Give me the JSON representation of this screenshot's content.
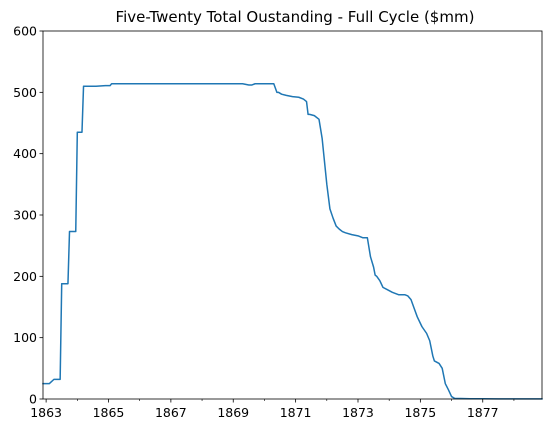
{
  "chart_data": {
    "type": "line",
    "title": "Five-Twenty Total Oustanding - Full Cycle ($mm)",
    "xlabel": "",
    "ylabel": "",
    "xlim": [
      1862.9,
      1878.9
    ],
    "ylim": [
      0,
      600
    ],
    "x_ticks": [
      1863,
      1865,
      1867,
      1869,
      1871,
      1873,
      1875,
      1877
    ],
    "x_tick_labels": [
      "1863",
      "1865",
      "1867",
      "1869",
      "1871",
      "1873",
      "1875",
      "1877"
    ],
    "x_minor_ticks": [
      1864,
      1866,
      1868,
      1870,
      1872,
      1874,
      1876,
      1878
    ],
    "y_ticks": [
      0,
      100,
      200,
      300,
      400,
      500,
      600
    ],
    "y_tick_labels": [
      "0",
      "100",
      "200",
      "300",
      "400",
      "500",
      "600"
    ],
    "grid": false,
    "line_color": "#1f77b4",
    "series": [
      {
        "x": [
          1862.9,
          1863.1,
          1863.25,
          1863.45,
          1863.5,
          1863.7,
          1863.75,
          1863.95,
          1864.0,
          1864.15,
          1864.2,
          1864.6,
          1864.9,
          1865.05,
          1865.1,
          1866.0,
          1867.0,
          1868.0,
          1869.0,
          1869.3,
          1869.5,
          1869.6,
          1869.7,
          1869.8,
          1870.0,
          1870.3,
          1870.4,
          1870.45,
          1870.55,
          1870.7,
          1870.9,
          1871.1,
          1871.25,
          1871.35,
          1871.4,
          1871.45,
          1871.6,
          1871.75,
          1871.85,
          1871.9,
          1872.0,
          1872.05,
          1872.1,
          1872.2,
          1872.3,
          1872.4,
          1872.5,
          1872.6,
          1872.8,
          1873.0,
          1873.15,
          1873.3,
          1873.4,
          1873.5,
          1873.55,
          1873.6,
          1873.7,
          1873.8,
          1873.95,
          1874.1,
          1874.3,
          1874.5,
          1874.6,
          1874.7,
          1874.8,
          1874.9,
          1875.05,
          1875.2,
          1875.3,
          1875.4,
          1875.45,
          1875.6,
          1875.7,
          1875.8,
          1875.9,
          1876.0,
          1876.1,
          1876.3,
          1876.6,
          1877.0,
          1877.5,
          1878.0,
          1878.5,
          1878.9
        ],
        "y": [
          25,
          25,
          32,
          32,
          188,
          188,
          273,
          273,
          435,
          435,
          510,
          510,
          511,
          511,
          514,
          514,
          514,
          514,
          514,
          514,
          512,
          512,
          514,
          514,
          514,
          514,
          500,
          500,
          497,
          495,
          493,
          492,
          489,
          485,
          464,
          464,
          462,
          456,
          425,
          400,
          350,
          330,
          310,
          295,
          282,
          277,
          273,
          271,
          268,
          266,
          263,
          263,
          232,
          215,
          202,
          200,
          193,
          182,
          178,
          174,
          170,
          170,
          168,
          162,
          148,
          134,
          118,
          107,
          95,
          70,
          62,
          58,
          50,
          25,
          15,
          4,
          1,
          0.8,
          0.5,
          0.4,
          0.3,
          0.2,
          0.2,
          0.2
        ]
      }
    ]
  }
}
